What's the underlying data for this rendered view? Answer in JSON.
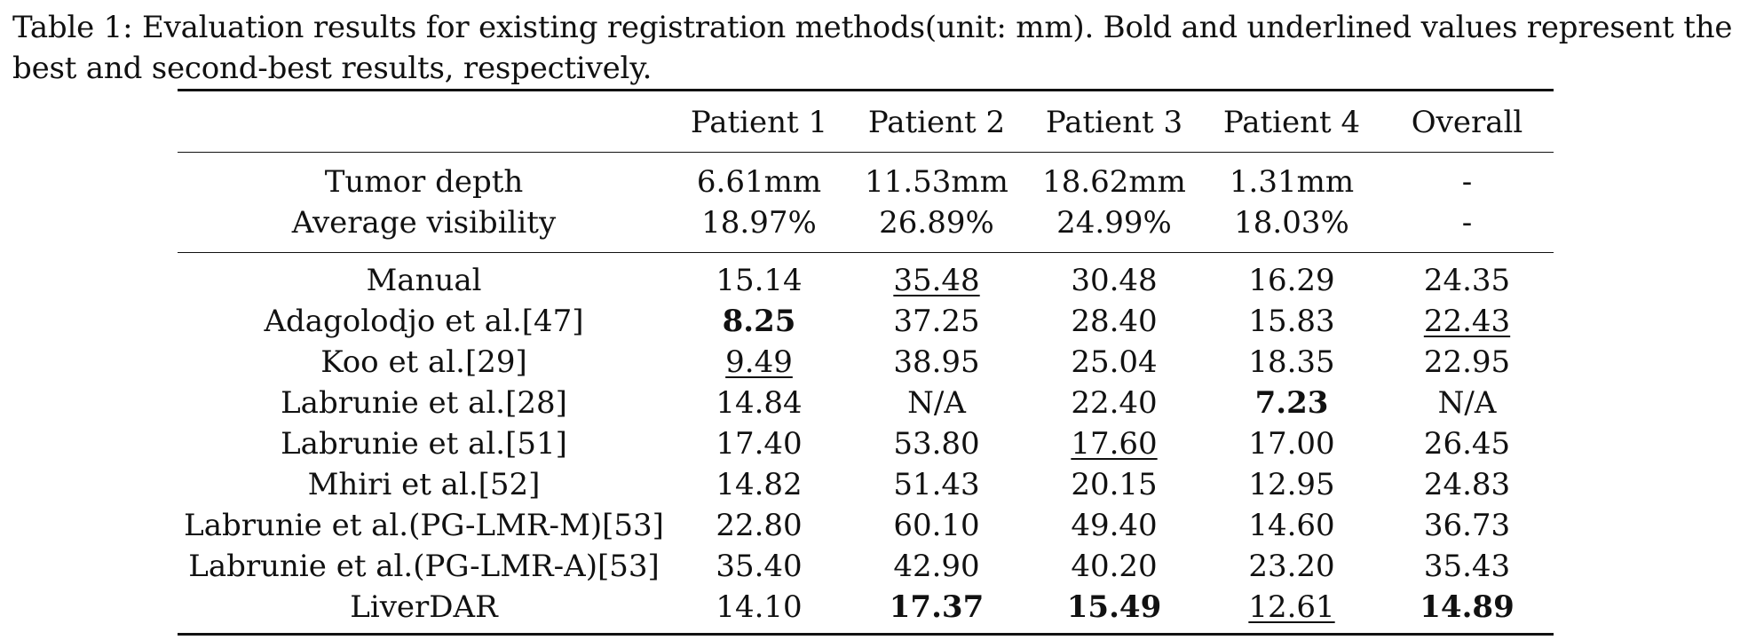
{
  "caption": "Table 1: Evaluation results for existing registration methods(unit: mm). Bold and underlined values represent the best and second-best results, respectively.",
  "headers": [
    "",
    "Patient 1",
    "Patient 2",
    "Patient 3",
    "Patient 4",
    "Overall"
  ],
  "stats_rows": [
    {
      "label": "Tumor depth",
      "values": [
        "6.61mm",
        "11.53mm",
        "18.62mm",
        "1.31mm",
        "-"
      ]
    },
    {
      "label": "Average visibility",
      "values": [
        "18.97%",
        "26.89%",
        "24.99%",
        "18.03%",
        "-"
      ]
    }
  ],
  "method_rows": [
    {
      "label": "Manual",
      "values": [
        "15.14",
        "35.48",
        "30.48",
        "16.29",
        "24.35"
      ],
      "styles": [
        "",
        "second",
        "",
        "",
        ""
      ]
    },
    {
      "label": "Adagolodjo et al.[47]",
      "values": [
        "8.25",
        "37.25",
        "28.40",
        "15.83",
        "22.43"
      ],
      "styles": [
        "best",
        "",
        "",
        "",
        "second"
      ]
    },
    {
      "label": "Koo et al.[29]",
      "values": [
        "9.49",
        "38.95",
        "25.04",
        "18.35",
        "22.95"
      ],
      "styles": [
        "second",
        "",
        "",
        "",
        ""
      ]
    },
    {
      "label": "Labrunie et al.[28]",
      "values": [
        "14.84",
        "N/A",
        "22.40",
        "7.23",
        "N/A"
      ],
      "styles": [
        "",
        "",
        "",
        "best",
        ""
      ]
    },
    {
      "label": "Labrunie et al.[51]",
      "values": [
        "17.40",
        "53.80",
        "17.60",
        "17.00",
        "26.45"
      ],
      "styles": [
        "",
        "",
        "second",
        "",
        ""
      ]
    },
    {
      "label": "Mhiri et al.[52]",
      "values": [
        "14.82",
        "51.43",
        "20.15",
        "12.95",
        "24.83"
      ],
      "styles": [
        "",
        "",
        "",
        "",
        ""
      ]
    },
    {
      "label": "Labrunie et al.(PG-LMR-M)[53]",
      "values": [
        "22.80",
        "60.10",
        "49.40",
        "14.60",
        "36.73"
      ],
      "styles": [
        "",
        "",
        "",
        "",
        ""
      ]
    },
    {
      "label": "Labrunie et al.(PG-LMR-A)[53]",
      "values": [
        "35.40",
        "42.90",
        "40.20",
        "23.20",
        "35.43"
      ],
      "styles": [
        "",
        "",
        "",
        "",
        ""
      ]
    },
    {
      "label": "LiverDAR",
      "values": [
        "14.10",
        "17.37",
        "15.49",
        "12.61",
        "14.89"
      ],
      "styles": [
        "",
        "best",
        "best",
        "second",
        "best"
      ]
    }
  ]
}
